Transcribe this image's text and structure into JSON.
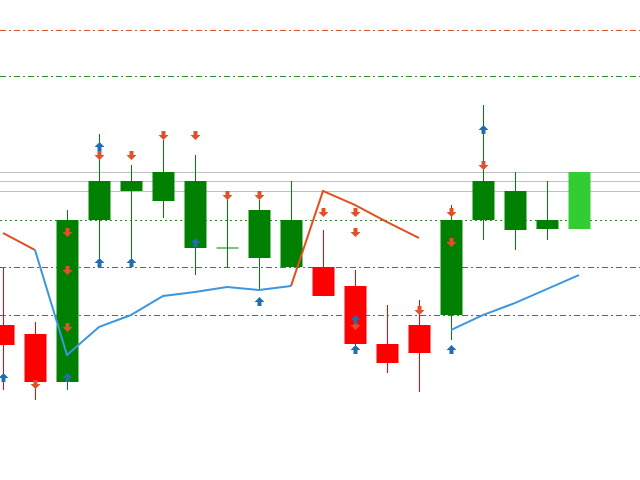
{
  "chart_data": {
    "type": "candlestick",
    "categories": [
      null,
      null,
      null,
      null,
      null,
      null,
      null,
      null,
      null,
      null,
      null,
      null,
      null,
      null,
      null,
      null,
      null,
      null,
      null
    ],
    "open": [
      155,
      146,
      98,
      260,
      289,
      279,
      232,
      232,
      222,
      213,
      213,
      194,
      136,
      155,
      165,
      260,
      250,
      251,
      251
    ],
    "high": [
      212,
      158,
      270,
      346,
      315,
      340,
      325,
      285,
      280,
      299,
      250,
      210,
      175,
      180,
      275,
      375,
      308,
      299,
      308
    ],
    "low": [
      90,
      80,
      90,
      215,
      220,
      262,
      205,
      212,
      190,
      213,
      184,
      128,
      107,
      88,
      140,
      240,
      230,
      240,
      251
    ],
    "close": [
      135,
      98,
      260,
      299,
      299,
      308,
      299,
      232,
      270,
      260,
      184,
      136,
      117,
      127,
      260,
      299,
      289,
      260,
      308
    ],
    "up_color": "#008000",
    "down_color": "#ff0000",
    "current_color": "#32cd32",
    "ylim": [
      0,
      480
    ],
    "series": [
      {
        "color": "#e0501e",
        "values": [
          247,
          230,
          null,
          null,
          null,
          null,
          null,
          null,
          null,
          194,
          289,
          275,
          258,
          242,
          null,
          null,
          null,
          null,
          null
        ]
      },
      {
        "color": "#3a96e0",
        "values": [
          null,
          230,
          125,
          153,
          165,
          184,
          188,
          193,
          190,
          194,
          null,
          null,
          null,
          null,
          150,
          165,
          177,
          191,
          205
        ]
      }
    ],
    "down_arrows": {
      "color": "#e0502a",
      "x": [
        2,
        2,
        2,
        3,
        4,
        5,
        6,
        7,
        8,
        10,
        11,
        11,
        11,
        13,
        14,
        14,
        15,
        1
      ],
      "values": [
        248,
        210,
        153,
        325,
        325,
        345,
        345,
        285,
        285,
        268,
        268,
        248,
        155,
        170,
        268,
        238,
        315,
        96
      ]
    },
    "up_arrows": {
      "color": "#1f6fb0",
      "x": [
        0,
        2,
        3,
        3,
        4,
        6,
        8,
        11,
        11,
        14,
        15
      ],
      "values": [
        102,
        102,
        333,
        217,
        217,
        237,
        178,
        160,
        130,
        130,
        350
      ]
    },
    "levels": [
      {
        "value": 450,
        "color": "#e0502a",
        "style": "dashdot"
      },
      {
        "value": 404,
        "color": "#2e8b2e",
        "style": "dashdot"
      },
      {
        "value": 308,
        "color": "#c0c0c0",
        "style": "solid"
      },
      {
        "value": 299,
        "color": "#c0c0c0",
        "style": "solid"
      },
      {
        "value": 289,
        "color": "#c0c0c0",
        "style": "solid"
      },
      {
        "value": 260,
        "color": "#2e8b2e",
        "style": "dotted"
      },
      {
        "value": 213,
        "color": "#2e8b2e",
        "style": "dashdot"
      },
      {
        "value": 165,
        "color": "#2e8b2e",
        "style": "dashdot"
      }
    ]
  }
}
